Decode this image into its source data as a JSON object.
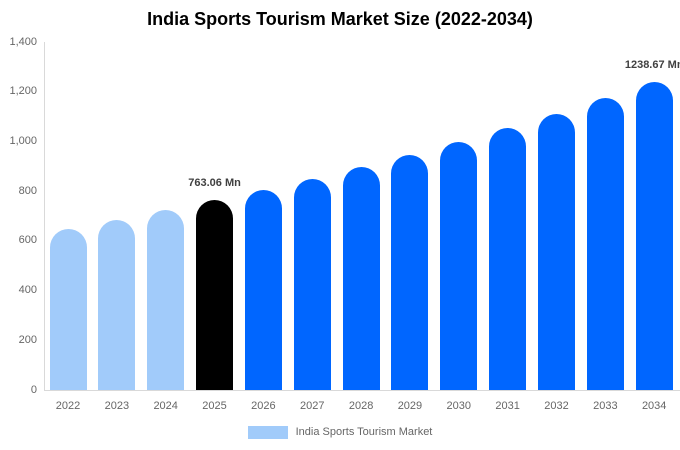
{
  "title": "India Sports Tourism Market Size (2022-2034)",
  "legend": {
    "label": "India Sports Tourism Market",
    "swatch_color": "#a1cbfa"
  },
  "colors": {
    "historical_bar": "#a1cbfa",
    "highlight_bar": "#000000",
    "forecast_bar": "#0066ff",
    "axis_line": "#d9d9d9",
    "axis_text": "#666666",
    "data_label_text": "#404040",
    "title_text": "#000000"
  },
  "chart_data": {
    "type": "bar",
    "title": "India Sports Tourism Market Size (2022-2034)",
    "unit": "Mn",
    "categories": [
      "2022",
      "2023",
      "2024",
      "2025",
      "2026",
      "2027",
      "2028",
      "2029",
      "2030",
      "2031",
      "2032",
      "2033",
      "2034"
    ],
    "values": [
      649,
      685,
      723,
      763.06,
      805,
      850,
      897,
      946,
      999,
      1054,
      1112,
      1174,
      1238.67
    ],
    "values_note": "only 2025 and 2034 are labeled on the chart; other values estimated from bar heights",
    "bar_colors": [
      "#a1cbfa",
      "#a1cbfa",
      "#a1cbfa",
      "#000000",
      "#0066ff",
      "#0066ff",
      "#0066ff",
      "#0066ff",
      "#0066ff",
      "#0066ff",
      "#0066ff",
      "#0066ff",
      "#0066ff"
    ],
    "labeled_points": [
      {
        "category": "2025",
        "label": "763.06 Mn"
      },
      {
        "category": "2034",
        "label": "1238.67 Mn"
      }
    ],
    "xlabel": "",
    "ylabel": "",
    "ylim": [
      0,
      1400
    ],
    "yticks": [
      0,
      200,
      400,
      600,
      800,
      1000,
      1200,
      1400
    ],
    "ytick_labels": [
      "0",
      "200",
      "400",
      "600",
      "800",
      "1,000",
      "1,200",
      "1,400"
    ],
    "grid": false,
    "legend_position": "bottom"
  }
}
